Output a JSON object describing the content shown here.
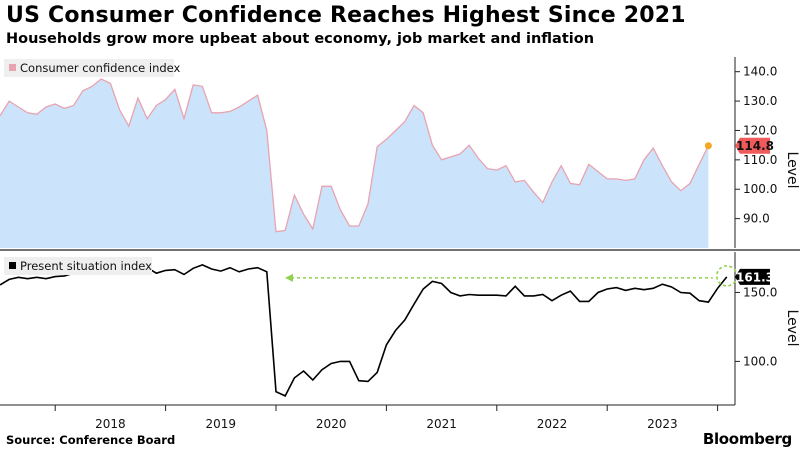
{
  "header": {
    "title": "US Consumer Confidence Reaches Highest Since 2021",
    "subtitle": "Households grow more upbeat about economy, job market and inflation"
  },
  "footer": {
    "source": "Source: Conference Board",
    "brand": "Bloomberg"
  },
  "colors": {
    "area_fill": "#cce4fb",
    "area_line": "#e8a3b0",
    "callout_top": "#f05a5a",
    "highlight_dot": "#f5a623",
    "line_bottom": "#000000",
    "dashed_arrow": "#8fd14f"
  },
  "chart_data": [
    {
      "type": "area",
      "legend": "Consumer confidence index",
      "ylabel": "Level",
      "ylim": [
        80,
        145
      ],
      "yticks": [
        90,
        100,
        110,
        120,
        130,
        140
      ],
      "ytick_labels": [
        "90.0",
        "100.0",
        "110.0",
        "120.0",
        "130.0",
        "140.0"
      ],
      "xticks": [
        2018,
        2019,
        2020,
        2021,
        2022,
        2023
      ],
      "x_start": 2017.5,
      "x_step_months": 1,
      "last_value_label": "114.8",
      "last_value": 114.8,
      "values": [
        125,
        130,
        128,
        126,
        125.5,
        128,
        129,
        127.5,
        128.5,
        133.5,
        135,
        137.5,
        136,
        127,
        121.5,
        131,
        124,
        128.5,
        130.5,
        134,
        124,
        135.5,
        135,
        126,
        126,
        126.5,
        128,
        130,
        132,
        120,
        85.5,
        86,
        98,
        91.5,
        86.5,
        101,
        101,
        93,
        87.5,
        87.5,
        95,
        114.5,
        117,
        120,
        123,
        128.5,
        126,
        115,
        110,
        111,
        112,
        115,
        110.5,
        107,
        106.5,
        108,
        102.5,
        103,
        99,
        95.5,
        102.5,
        108,
        102,
        101.5,
        108.5,
        106,
        103.5,
        103.5,
        103,
        103.5,
        110,
        114,
        108,
        102.5,
        99.5,
        102,
        108.5,
        114.8
      ]
    },
    {
      "type": "line",
      "legend": "Present situation index",
      "ylabel": "Level",
      "ylim": [
        72,
        175
      ],
      "yticks": [
        100,
        150
      ],
      "ytick_labels": [
        "100.0",
        "150.0"
      ],
      "xticks": [
        2018,
        2019,
        2020,
        2021,
        2022,
        2023
      ],
      "xtick_labels": [
        "2018",
        "2019",
        "2020",
        "2021",
        "2022",
        "2023"
      ],
      "x_start": 2017.5,
      "x_step_months": 1,
      "last_value_label": "161.3",
      "last_value": 161.3,
      "reference_value": 161.3,
      "values": [
        155.5,
        159.5,
        161,
        160,
        161,
        160,
        161.5,
        162,
        164,
        168,
        166,
        168,
        168.5,
        167,
        167,
        166.5,
        168,
        164,
        166,
        166.5,
        163,
        167.5,
        170,
        167,
        165.5,
        168,
        165,
        167,
        168,
        165,
        78,
        75,
        88,
        93,
        86.5,
        94,
        98.5,
        100,
        100,
        86,
        85.5,
        92,
        112,
        122.5,
        130,
        141.5,
        152.5,
        158,
        156.5,
        150,
        147.5,
        148.5,
        148,
        148,
        148,
        147.5,
        154.5,
        147.5,
        147.5,
        148.5,
        144,
        148,
        151,
        143.5,
        143.5,
        150,
        152.5,
        153.5,
        151.5,
        153,
        152,
        153,
        156,
        154,
        150,
        149.5,
        144,
        143,
        153,
        161.3
      ]
    }
  ]
}
